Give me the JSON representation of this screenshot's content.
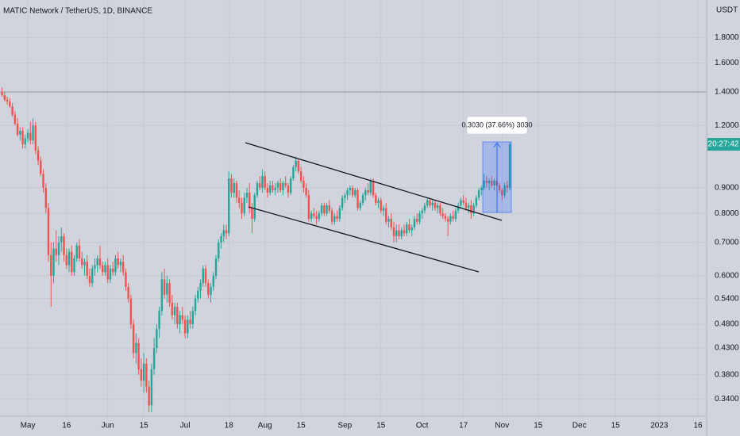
{
  "chart_data": {
    "type": "candlestick",
    "title": "MATIC Network / TetherUS, 1D, BINANCE",
    "currency": "USDT",
    "countdown": "20:27:42",
    "measure_label": "0.3030 (37.66%) 3030",
    "log_scale": true,
    "grid": true,
    "up_color": "#26a69a",
    "down_color": "#ef5350",
    "ylim": [
      0.314,
      2.14
    ],
    "yticks": [
      {
        "value": 1.8,
        "label": "1.8000"
      },
      {
        "value": 1.6,
        "label": "1.6000"
      },
      {
        "value": 1.4,
        "label": "1.4000"
      },
      {
        "value": 1.2,
        "label": "1.2000"
      },
      {
        "value": 0.9,
        "label": "0.9000"
      },
      {
        "value": 0.8,
        "label": "0.8000"
      },
      {
        "value": 0.7,
        "label": "0.7000"
      },
      {
        "value": 0.6,
        "label": "0.6000"
      },
      {
        "value": 0.54,
        "label": "0.5400"
      },
      {
        "value": 0.48,
        "label": "0.4800"
      },
      {
        "value": 0.43,
        "label": "0.4300"
      },
      {
        "value": 0.38,
        "label": "0.3800"
      },
      {
        "value": 0.34,
        "label": "0.3400"
      }
    ],
    "categories": [
      null,
      null,
      null,
      null,
      null,
      null,
      null,
      null,
      null,
      null,
      "May",
      null,
      null,
      null,
      null,
      null,
      null,
      null,
      null,
      null,
      null,
      null,
      null,
      null,
      null,
      "16",
      null,
      null,
      null,
      null,
      null,
      null,
      null,
      null,
      null,
      null,
      null,
      null,
      null,
      null,
      null,
      "Jun",
      null,
      null,
      null,
      null,
      null,
      null,
      null,
      null,
      null,
      null,
      null,
      null,
      null,
      "15",
      null,
      null,
      null,
      null,
      null,
      null,
      null,
      null,
      null,
      null,
      null,
      null,
      null,
      null,
      null,
      "Jul",
      null,
      null,
      null,
      null,
      null,
      null,
      null,
      null,
      null,
      null,
      null,
      null,
      null,
      null,
      null,
      null,
      "18",
      null,
      null,
      null,
      null,
      null,
      null,
      null,
      null,
      null,
      null,
      null,
      null,
      null,
      "Aug",
      null,
      null,
      null,
      null,
      null,
      null,
      null,
      null,
      null,
      null,
      null,
      null,
      null,
      "15",
      null,
      null,
      null,
      null,
      null,
      null,
      null,
      null,
      null,
      null,
      null,
      null,
      null,
      null,
      null,
      null,
      "Sep",
      null,
      null,
      null,
      null,
      null,
      null,
      null,
      null,
      null,
      null,
      null,
      null,
      null,
      "15",
      null,
      null,
      null,
      null,
      null,
      null,
      null,
      null,
      null,
      null,
      null,
      null,
      null,
      null,
      null,
      "Oct",
      null,
      null,
      null,
      null,
      null,
      null,
      null,
      null,
      null,
      null,
      null,
      null,
      null,
      null,
      null,
      "17",
      null,
      null,
      null,
      null,
      null,
      null,
      null,
      null,
      null,
      null,
      null,
      null,
      null,
      null,
      "Nov",
      null,
      null,
      null,
      null,
      null,
      null,
      null,
      null,
      null,
      null,
      null,
      null,
      null,
      "15",
      null,
      null,
      null,
      null,
      null,
      null,
      null,
      null,
      null,
      null,
      null,
      null,
      null,
      null,
      null,
      "Dec",
      null,
      null,
      null,
      null,
      null,
      null,
      null,
      null,
      null,
      null,
      null,
      null,
      null,
      "15",
      null,
      null,
      null,
      null,
      null,
      null,
      null,
      null,
      null,
      null,
      null,
      null,
      null,
      null,
      null,
      null,
      "2023",
      null,
      null,
      null,
      null,
      null,
      null,
      null,
      null,
      null,
      null,
      null,
      null,
      null,
      null,
      "16"
    ],
    "ohlc": [
      [
        1.4,
        1.43,
        1.37,
        1.38
      ],
      [
        1.38,
        1.4,
        1.34,
        1.35
      ],
      [
        1.35,
        1.37,
        1.32,
        1.34
      ],
      [
        1.34,
        1.36,
        1.3,
        1.31
      ],
      [
        1.31,
        1.33,
        1.25,
        1.26
      ],
      [
        1.26,
        1.28,
        1.2,
        1.21
      ],
      [
        1.21,
        1.24,
        1.14,
        1.15
      ],
      [
        1.15,
        1.19,
        1.12,
        1.17
      ],
      [
        1.17,
        1.19,
        1.08,
        1.1
      ],
      [
        1.1,
        1.15,
        1.08,
        1.13
      ],
      [
        1.13,
        1.18,
        1.11,
        1.16
      ],
      [
        1.16,
        1.22,
        1.1,
        1.12
      ],
      [
        1.12,
        1.24,
        1.1,
        1.2
      ],
      [
        1.2,
        1.22,
        1.05,
        1.07
      ],
      [
        1.07,
        1.09,
        1.0,
        1.02
      ],
      [
        1.02,
        1.04,
        0.95,
        0.96
      ],
      [
        0.96,
        0.98,
        0.88,
        0.9
      ],
      [
        0.9,
        0.92,
        0.8,
        0.82
      ],
      [
        0.82,
        0.84,
        0.64,
        0.66
      ],
      [
        0.66,
        0.7,
        0.52,
        0.6
      ],
      [
        0.6,
        0.7,
        0.58,
        0.68
      ],
      [
        0.68,
        0.74,
        0.64,
        0.66
      ],
      [
        0.66,
        0.72,
        0.63,
        0.7
      ],
      [
        0.7,
        0.75,
        0.67,
        0.72
      ],
      [
        0.72,
        0.73,
        0.64,
        0.66
      ],
      [
        0.66,
        0.68,
        0.62,
        0.63
      ],
      [
        0.63,
        0.68,
        0.61,
        0.67
      ],
      [
        0.67,
        0.69,
        0.6,
        0.61
      ],
      [
        0.61,
        0.66,
        0.6,
        0.65
      ],
      [
        0.65,
        0.7,
        0.64,
        0.69
      ],
      [
        0.69,
        0.71,
        0.64,
        0.65
      ],
      [
        0.65,
        0.67,
        0.62,
        0.63
      ],
      [
        0.63,
        0.65,
        0.6,
        0.64
      ],
      [
        0.64,
        0.66,
        0.59,
        0.6
      ],
      [
        0.6,
        0.62,
        0.57,
        0.58
      ],
      [
        0.58,
        0.63,
        0.57,
        0.62
      ],
      [
        0.62,
        0.65,
        0.6,
        0.63
      ],
      [
        0.63,
        0.66,
        0.61,
        0.65
      ],
      [
        0.65,
        0.69,
        0.62,
        0.63
      ],
      [
        0.63,
        0.64,
        0.6,
        0.61
      ],
      [
        0.61,
        0.64,
        0.6,
        0.63
      ],
      [
        0.63,
        0.65,
        0.58,
        0.59
      ],
      [
        0.59,
        0.63,
        0.58,
        0.62
      ],
      [
        0.62,
        0.64,
        0.6,
        0.61
      ],
      [
        0.61,
        0.66,
        0.6,
        0.65
      ],
      [
        0.65,
        0.67,
        0.62,
        0.63
      ],
      [
        0.63,
        0.65,
        0.61,
        0.64
      ],
      [
        0.64,
        0.66,
        0.6,
        0.61
      ],
      [
        0.61,
        0.62,
        0.56,
        0.57
      ],
      [
        0.57,
        0.58,
        0.53,
        0.54
      ],
      [
        0.54,
        0.55,
        0.47,
        0.48
      ],
      [
        0.48,
        0.49,
        0.41,
        0.42
      ],
      [
        0.42,
        0.46,
        0.4,
        0.44
      ],
      [
        0.44,
        0.45,
        0.38,
        0.39
      ],
      [
        0.39,
        0.41,
        0.36,
        0.37
      ],
      [
        0.37,
        0.42,
        0.35,
        0.4
      ],
      [
        0.4,
        0.41,
        0.35,
        0.36
      ],
      [
        0.36,
        0.37,
        0.32,
        0.33
      ],
      [
        0.33,
        0.4,
        0.32,
        0.39
      ],
      [
        0.39,
        0.45,
        0.38,
        0.43
      ],
      [
        0.43,
        0.48,
        0.42,
        0.47
      ],
      [
        0.47,
        0.52,
        0.45,
        0.51
      ],
      [
        0.51,
        0.61,
        0.5,
        0.59
      ],
      [
        0.59,
        0.62,
        0.54,
        0.55
      ],
      [
        0.55,
        0.6,
        0.53,
        0.58
      ],
      [
        0.58,
        0.59,
        0.52,
        0.53
      ],
      [
        0.53,
        0.55,
        0.49,
        0.5
      ],
      [
        0.5,
        0.53,
        0.48,
        0.52
      ],
      [
        0.52,
        0.53,
        0.47,
        0.48
      ],
      [
        0.48,
        0.51,
        0.46,
        0.5
      ],
      [
        0.5,
        0.52,
        0.48,
        0.49
      ],
      [
        0.49,
        0.5,
        0.45,
        0.46
      ],
      [
        0.46,
        0.5,
        0.45,
        0.49
      ],
      [
        0.49,
        0.51,
        0.47,
        0.48
      ],
      [
        0.48,
        0.52,
        0.47,
        0.51
      ],
      [
        0.51,
        0.55,
        0.5,
        0.54
      ],
      [
        0.54,
        0.57,
        0.53,
        0.56
      ],
      [
        0.56,
        0.59,
        0.54,
        0.58
      ],
      [
        0.58,
        0.63,
        0.57,
        0.62
      ],
      [
        0.62,
        0.63,
        0.57,
        0.58
      ],
      [
        0.58,
        0.59,
        0.54,
        0.55
      ],
      [
        0.55,
        0.58,
        0.53,
        0.57
      ],
      [
        0.57,
        0.61,
        0.56,
        0.6
      ],
      [
        0.6,
        0.66,
        0.59,
        0.65
      ],
      [
        0.65,
        0.71,
        0.64,
        0.7
      ],
      [
        0.7,
        0.73,
        0.68,
        0.72
      ],
      [
        0.72,
        0.76,
        0.7,
        0.74
      ],
      [
        0.74,
        0.76,
        0.71,
        0.73
      ],
      [
        0.73,
        0.97,
        0.72,
        0.94
      ],
      [
        0.94,
        0.96,
        0.86,
        0.88
      ],
      [
        0.88,
        0.94,
        0.86,
        0.92
      ],
      [
        0.92,
        0.93,
        0.84,
        0.86
      ],
      [
        0.86,
        0.89,
        0.82,
        0.84
      ],
      [
        0.84,
        0.86,
        0.78,
        0.8
      ],
      [
        0.8,
        0.88,
        0.79,
        0.86
      ],
      [
        0.86,
        0.9,
        0.84,
        0.88
      ],
      [
        0.88,
        0.92,
        0.8,
        0.82
      ],
      [
        0.82,
        0.84,
        0.73,
        0.78
      ],
      [
        0.78,
        0.88,
        0.77,
        0.87
      ],
      [
        0.87,
        0.93,
        0.86,
        0.92
      ],
      [
        0.92,
        0.95,
        0.89,
        0.9
      ],
      [
        0.9,
        0.98,
        0.88,
        0.95
      ],
      [
        0.95,
        0.97,
        0.89,
        0.9
      ],
      [
        0.9,
        0.92,
        0.86,
        0.88
      ],
      [
        0.88,
        0.93,
        0.87,
        0.91
      ],
      [
        0.91,
        0.93,
        0.88,
        0.89
      ],
      [
        0.89,
        0.92,
        0.87,
        0.9
      ],
      [
        0.9,
        0.93,
        0.88,
        0.92
      ],
      [
        0.92,
        0.94,
        0.88,
        0.89
      ],
      [
        0.89,
        0.93,
        0.87,
        0.92
      ],
      [
        0.92,
        0.95,
        0.9,
        0.91
      ],
      [
        0.91,
        0.92,
        0.86,
        0.88
      ],
      [
        0.88,
        0.95,
        0.87,
        0.94
      ],
      [
        0.94,
        1.0,
        0.93,
        0.99
      ],
      [
        0.99,
        1.04,
        0.97,
        1.02
      ],
      [
        1.02,
        1.03,
        0.96,
        0.97
      ],
      [
        0.97,
        0.99,
        0.92,
        0.93
      ],
      [
        0.93,
        0.95,
        0.88,
        0.9
      ],
      [
        0.9,
        0.92,
        0.86,
        0.87
      ],
      [
        0.87,
        0.89,
        0.77,
        0.78
      ],
      [
        0.78,
        0.81,
        0.77,
        0.8
      ],
      [
        0.8,
        0.82,
        0.78,
        0.79
      ],
      [
        0.79,
        0.81,
        0.76,
        0.78
      ],
      [
        0.78,
        0.81,
        0.77,
        0.8
      ],
      [
        0.8,
        0.84,
        0.79,
        0.83
      ],
      [
        0.83,
        0.84,
        0.79,
        0.8
      ],
      [
        0.8,
        0.84,
        0.79,
        0.83
      ],
      [
        0.83,
        0.85,
        0.8,
        0.81
      ],
      [
        0.81,
        0.82,
        0.76,
        0.77
      ],
      [
        0.77,
        0.8,
        0.76,
        0.79
      ],
      [
        0.79,
        0.81,
        0.77,
        0.78
      ],
      [
        0.78,
        0.83,
        0.77,
        0.82
      ],
      [
        0.82,
        0.87,
        0.81,
        0.86
      ],
      [
        0.86,
        0.88,
        0.84,
        0.87
      ],
      [
        0.87,
        0.9,
        0.85,
        0.89
      ],
      [
        0.89,
        0.91,
        0.87,
        0.9
      ],
      [
        0.9,
        0.91,
        0.86,
        0.87
      ],
      [
        0.87,
        0.9,
        0.86,
        0.89
      ],
      [
        0.89,
        0.9,
        0.81,
        0.82
      ],
      [
        0.82,
        0.85,
        0.81,
        0.84
      ],
      [
        0.84,
        0.88,
        0.83,
        0.87
      ],
      [
        0.87,
        0.9,
        0.85,
        0.89
      ],
      [
        0.89,
        0.92,
        0.87,
        0.88
      ],
      [
        0.88,
        0.94,
        0.87,
        0.93
      ],
      [
        0.93,
        0.94,
        0.86,
        0.87
      ],
      [
        0.87,
        0.88,
        0.83,
        0.84
      ],
      [
        0.84,
        0.86,
        0.82,
        0.85
      ],
      [
        0.85,
        0.86,
        0.8,
        0.81
      ],
      [
        0.81,
        0.83,
        0.79,
        0.82
      ],
      [
        0.82,
        0.84,
        0.76,
        0.77
      ],
      [
        0.77,
        0.79,
        0.75,
        0.78
      ],
      [
        0.78,
        0.8,
        0.74,
        0.75
      ],
      [
        0.75,
        0.77,
        0.7,
        0.72
      ],
      [
        0.72,
        0.76,
        0.7,
        0.74
      ],
      [
        0.74,
        0.76,
        0.71,
        0.72
      ],
      [
        0.72,
        0.75,
        0.71,
        0.74
      ],
      [
        0.74,
        0.76,
        0.72,
        0.73
      ],
      [
        0.73,
        0.77,
        0.72,
        0.76
      ],
      [
        0.76,
        0.78,
        0.73,
        0.74
      ],
      [
        0.74,
        0.76,
        0.72,
        0.75
      ],
      [
        0.75,
        0.79,
        0.74,
        0.78
      ],
      [
        0.78,
        0.8,
        0.76,
        0.77
      ],
      [
        0.77,
        0.81,
        0.76,
        0.8
      ],
      [
        0.8,
        0.82,
        0.78,
        0.81
      ],
      [
        0.81,
        0.84,
        0.8,
        0.83
      ],
      [
        0.83,
        0.86,
        0.82,
        0.85
      ],
      [
        0.85,
        0.86,
        0.82,
        0.83
      ],
      [
        0.83,
        0.85,
        0.81,
        0.84
      ],
      [
        0.84,
        0.85,
        0.81,
        0.82
      ],
      [
        0.82,
        0.84,
        0.8,
        0.83
      ],
      [
        0.83,
        0.84,
        0.79,
        0.8
      ],
      [
        0.8,
        0.82,
        0.78,
        0.79
      ],
      [
        0.79,
        0.8,
        0.77,
        0.78
      ],
      [
        0.78,
        0.79,
        0.72,
        0.77
      ],
      [
        0.77,
        0.8,
        0.76,
        0.79
      ],
      [
        0.79,
        0.81,
        0.77,
        0.78
      ],
      [
        0.78,
        0.82,
        0.77,
        0.81
      ],
      [
        0.81,
        0.84,
        0.8,
        0.83
      ],
      [
        0.83,
        0.86,
        0.82,
        0.85
      ],
      [
        0.85,
        0.87,
        0.83,
        0.84
      ],
      [
        0.84,
        0.86,
        0.81,
        0.82
      ],
      [
        0.82,
        0.84,
        0.8,
        0.83
      ],
      [
        0.83,
        0.85,
        0.78,
        0.8
      ],
      [
        0.8,
        0.84,
        0.79,
        0.83
      ],
      [
        0.83,
        0.87,
        0.82,
        0.86
      ],
      [
        0.86,
        0.9,
        0.85,
        0.89
      ],
      [
        0.89,
        0.91,
        0.87,
        0.9
      ],
      [
        0.9,
        0.96,
        0.89,
        0.93
      ],
      [
        0.93,
        0.95,
        0.9,
        0.92
      ],
      [
        0.92,
        0.94,
        0.89,
        0.93
      ],
      [
        0.93,
        0.95,
        0.9,
        0.91
      ],
      [
        0.91,
        0.94,
        0.89,
        0.93
      ],
      [
        0.93,
        0.95,
        0.9,
        0.91
      ],
      [
        0.91,
        0.92,
        0.88,
        0.89
      ],
      [
        0.89,
        0.9,
        0.85,
        0.87
      ],
      [
        0.87,
        0.92,
        0.86,
        0.91
      ],
      [
        0.91,
        0.93,
        0.88,
        0.9
      ],
      [
        0.9,
        1.11,
        0.89,
        1.1
      ],
      null,
      null,
      null,
      null,
      null,
      null,
      null,
      null,
      null,
      null,
      null,
      null,
      null,
      null,
      null,
      null,
      null,
      null,
      null,
      null,
      null,
      null,
      null,
      null,
      null,
      null,
      null,
      null,
      null,
      null,
      null,
      null,
      null,
      null,
      null,
      null,
      null,
      null,
      null,
      null,
      null,
      null,
      null,
      null,
      null,
      null,
      null,
      null,
      null,
      null,
      null,
      null,
      null,
      null,
      null,
      null,
      null,
      null,
      null,
      null,
      null,
      null,
      null,
      null,
      null,
      null,
      null,
      null,
      null,
      null,
      null,
      null,
      null
    ]
  }
}
